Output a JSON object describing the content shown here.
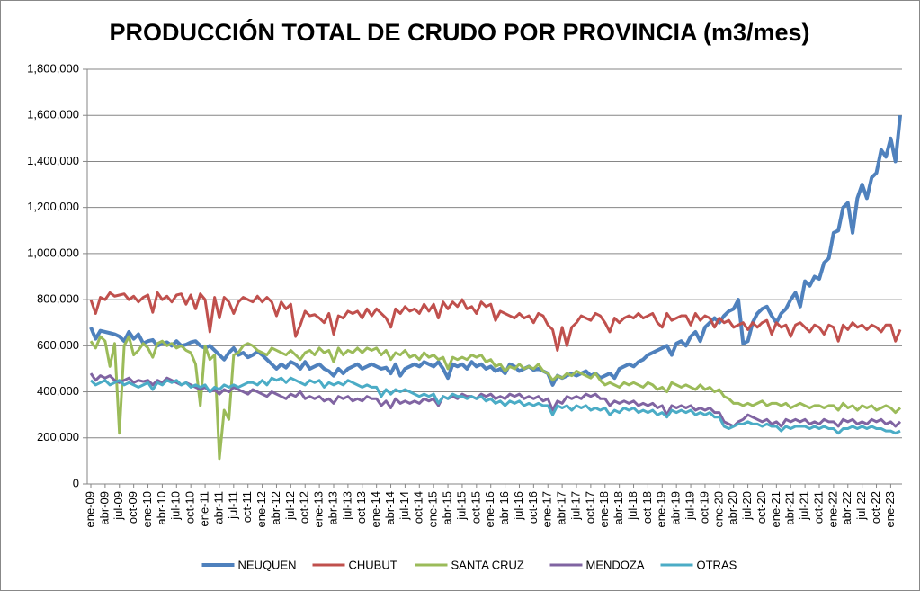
{
  "chart_data": {
    "type": "line",
    "title": "PRODUCCIÓN TOTAL DE CRUDO POR PROVINCIA (m3/mes)",
    "categories": [
      "ene-09",
      null,
      null,
      "abr-09",
      null,
      null,
      "jul-09",
      null,
      null,
      "oct-09",
      null,
      null,
      "ene-10",
      null,
      null,
      "abr-10",
      null,
      null,
      "jul-10",
      null,
      null,
      "oct-10",
      null,
      null,
      "ene-11",
      null,
      null,
      "abr-11",
      null,
      null,
      "jul-11",
      null,
      null,
      "oct-11",
      null,
      null,
      "ene-12",
      null,
      null,
      "abr-12",
      null,
      null,
      "jul-12",
      null,
      null,
      "oct-12",
      null,
      null,
      "ene-13",
      null,
      null,
      "abr-13",
      null,
      null,
      "jul-13",
      null,
      null,
      "oct-13",
      null,
      null,
      "ene-14",
      null,
      null,
      "abr-14",
      null,
      null,
      "jul-14",
      null,
      null,
      "oct-14",
      null,
      null,
      "ene-15",
      null,
      null,
      "abr-15",
      null,
      null,
      "jul-15",
      null,
      null,
      "oct-15",
      null,
      null,
      "ene-16",
      null,
      null,
      "abr-16",
      null,
      null,
      "jul-16",
      null,
      null,
      "oct-16",
      null,
      null,
      "ene-17",
      null,
      null,
      "abr-17",
      null,
      null,
      "jul-17",
      null,
      null,
      "oct-17",
      null,
      null,
      "ene-18",
      null,
      null,
      "abr-18",
      null,
      null,
      "jul-18",
      null,
      null,
      "oct-18",
      null,
      null,
      "ene-19",
      null,
      null,
      "abr-19",
      null,
      null,
      "jul-19",
      null,
      null,
      "oct-19",
      null,
      null,
      "ene-20",
      null,
      null,
      "abr-20",
      null,
      null,
      "jul-20",
      null,
      null,
      "oct-20",
      null,
      null,
      "ene-21",
      null,
      null,
      "abr-21",
      null,
      null,
      "jul-21",
      null,
      null,
      "oct-21",
      null,
      null,
      "ene-22",
      null,
      null,
      "abr-22",
      null,
      null,
      "jul-22",
      null,
      null,
      "oct-22",
      null,
      null,
      "ene-23",
      null,
      null
    ],
    "series": [
      {
        "name": "NEUQUEN",
        "color": "#4f81bd",
        "values": [
          680000,
          630000,
          665000,
          660000,
          655000,
          650000,
          640000,
          620000,
          660000,
          630000,
          650000,
          610000,
          620000,
          625000,
          600000,
          610000,
          615000,
          600000,
          620000,
          600000,
          605000,
          615000,
          620000,
          600000,
          590000,
          600000,
          580000,
          560000,
          540000,
          570000,
          590000,
          560000,
          570000,
          550000,
          560000,
          575000,
          560000,
          540000,
          520000,
          500000,
          520000,
          505000,
          530000,
          520000,
          500000,
          530000,
          500000,
          510000,
          520000,
          500000,
          490000,
          470000,
          500000,
          480000,
          500000,
          510000,
          520000,
          500000,
          510000,
          520000,
          510000,
          500000,
          505000,
          480000,
          520000,
          470000,
          500000,
          510000,
          520000,
          510000,
          530000,
          520000,
          510000,
          530000,
          500000,
          460000,
          520000,
          510000,
          520000,
          500000,
          530000,
          510000,
          520000,
          500000,
          510000,
          490000,
          500000,
          480000,
          520000,
          510000,
          490000,
          500000,
          510000,
          495000,
          500000,
          490000,
          480000,
          430000,
          470000,
          460000,
          470000,
          480000,
          470000,
          480000,
          490000,
          470000,
          480000,
          460000,
          470000,
          480000,
          460000,
          500000,
          510000,
          520000,
          510000,
          530000,
          540000,
          560000,
          570000,
          580000,
          590000,
          600000,
          560000,
          610000,
          620000,
          600000,
          640000,
          660000,
          620000,
          680000,
          700000,
          720000,
          700000,
          730000,
          750000,
          760000,
          800000,
          610000,
          620000,
          700000,
          740000,
          760000,
          770000,
          730000,
          700000,
          740000,
          760000,
          800000,
          830000,
          770000,
          880000,
          860000,
          900000,
          890000,
          960000,
          980000,
          1090000,
          1100000,
          1200000,
          1220000,
          1090000,
          1240000,
          1300000,
          1240000,
          1330000,
          1350000,
          1450000,
          1420000,
          1500000,
          1400000,
          1600000
        ]
      },
      {
        "name": "CHUBUT",
        "color": "#c0504d",
        "values": [
          800000,
          740000,
          810000,
          800000,
          830000,
          815000,
          820000,
          825000,
          800000,
          815000,
          790000,
          810000,
          820000,
          745000,
          830000,
          800000,
          815000,
          790000,
          820000,
          825000,
          780000,
          820000,
          760000,
          825000,
          800000,
          660000,
          810000,
          720000,
          810000,
          790000,
          740000,
          790000,
          810000,
          800000,
          790000,
          815000,
          790000,
          810000,
          790000,
          730000,
          790000,
          760000,
          780000,
          640000,
          690000,
          750000,
          730000,
          735000,
          720000,
          700000,
          740000,
          650000,
          730000,
          720000,
          750000,
          740000,
          750000,
          720000,
          760000,
          730000,
          760000,
          740000,
          720000,
          680000,
          760000,
          740000,
          770000,
          750000,
          760000,
          740000,
          780000,
          750000,
          780000,
          720000,
          790000,
          760000,
          790000,
          770000,
          800000,
          760000,
          770000,
          740000,
          790000,
          770000,
          780000,
          710000,
          750000,
          740000,
          730000,
          720000,
          740000,
          720000,
          730000,
          700000,
          740000,
          730000,
          690000,
          670000,
          580000,
          680000,
          600000,
          680000,
          700000,
          730000,
          720000,
          710000,
          740000,
          730000,
          700000,
          660000,
          720000,
          700000,
          720000,
          730000,
          720000,
          740000,
          720000,
          730000,
          740000,
          700000,
          680000,
          740000,
          710000,
          720000,
          730000,
          730000,
          690000,
          740000,
          710000,
          730000,
          720000,
          680000,
          720000,
          700000,
          710000,
          680000,
          690000,
          700000,
          670000,
          700000,
          680000,
          700000,
          710000,
          650000,
          700000,
          680000,
          690000,
          640000,
          690000,
          700000,
          680000,
          660000,
          690000,
          680000,
          650000,
          690000,
          680000,
          620000,
          690000,
          670000,
          700000,
          680000,
          690000,
          670000,
          690000,
          680000,
          660000,
          690000,
          690000,
          620000,
          670000
        ]
      },
      {
        "name": "SANTA CRUZ",
        "color": "#9bbb59",
        "values": [
          620000,
          590000,
          640000,
          620000,
          510000,
          610000,
          220000,
          600000,
          640000,
          560000,
          580000,
          610000,
          590000,
          550000,
          610000,
          620000,
          600000,
          610000,
          590000,
          600000,
          580000,
          570000,
          520000,
          340000,
          600000,
          540000,
          560000,
          110000,
          320000,
          280000,
          560000,
          570000,
          600000,
          610000,
          600000,
          580000,
          570000,
          560000,
          590000,
          580000,
          570000,
          560000,
          580000,
          560000,
          540000,
          570000,
          580000,
          560000,
          590000,
          570000,
          580000,
          530000,
          590000,
          560000,
          580000,
          570000,
          590000,
          570000,
          590000,
          580000,
          590000,
          560000,
          580000,
          540000,
          570000,
          560000,
          580000,
          550000,
          560000,
          540000,
          570000,
          550000,
          560000,
          540000,
          550000,
          500000,
          550000,
          540000,
          550000,
          540000,
          560000,
          550000,
          560000,
          530000,
          540000,
          510000,
          520000,
          490000,
          510000,
          500000,
          520000,
          500000,
          510000,
          500000,
          520000,
          490000,
          480000,
          450000,
          470000,
          460000,
          480000,
          470000,
          490000,
          480000,
          470000,
          460000,
          480000,
          450000,
          430000,
          440000,
          430000,
          420000,
          440000,
          430000,
          440000,
          430000,
          420000,
          440000,
          430000,
          410000,
          420000,
          400000,
          440000,
          430000,
          420000,
          430000,
          420000,
          410000,
          430000,
          410000,
          420000,
          400000,
          410000,
          380000,
          370000,
          350000,
          350000,
          340000,
          350000,
          340000,
          350000,
          360000,
          340000,
          350000,
          350000,
          340000,
          350000,
          330000,
          340000,
          350000,
          340000,
          330000,
          340000,
          340000,
          330000,
          340000,
          340000,
          320000,
          350000,
          330000,
          340000,
          320000,
          340000,
          330000,
          340000,
          320000,
          330000,
          340000,
          330000,
          310000,
          330000
        ]
      },
      {
        "name": "MENDOZA",
        "color": "#8064a2",
        "values": [
          480000,
          450000,
          470000,
          460000,
          470000,
          450000,
          440000,
          450000,
          460000,
          440000,
          450000,
          445000,
          450000,
          430000,
          450000,
          440000,
          460000,
          450000,
          440000,
          430000,
          440000,
          430000,
          420000,
          410000,
          420000,
          400000,
          410000,
          390000,
          410000,
          400000,
          420000,
          410000,
          400000,
          390000,
          410000,
          400000,
          390000,
          380000,
          400000,
          390000,
          380000,
          370000,
          390000,
          380000,
          400000,
          370000,
          380000,
          370000,
          380000,
          360000,
          370000,
          350000,
          380000,
          370000,
          380000,
          360000,
          370000,
          360000,
          380000,
          370000,
          370000,
          340000,
          360000,
          330000,
          370000,
          350000,
          360000,
          350000,
          360000,
          350000,
          370000,
          360000,
          370000,
          340000,
          380000,
          370000,
          380000,
          370000,
          390000,
          380000,
          380000,
          370000,
          390000,
          380000,
          390000,
          370000,
          380000,
          370000,
          390000,
          380000,
          390000,
          370000,
          380000,
          370000,
          380000,
          360000,
          370000,
          320000,
          360000,
          350000,
          380000,
          370000,
          380000,
          370000,
          390000,
          380000,
          390000,
          370000,
          370000,
          340000,
          360000,
          350000,
          360000,
          350000,
          360000,
          340000,
          350000,
          340000,
          350000,
          330000,
          340000,
          300000,
          340000,
          330000,
          340000,
          330000,
          340000,
          320000,
          330000,
          320000,
          330000,
          310000,
          310000,
          270000,
          260000,
          250000,
          270000,
          280000,
          300000,
          290000,
          280000,
          270000,
          280000,
          260000,
          270000,
          250000,
          280000,
          270000,
          280000,
          270000,
          280000,
          260000,
          270000,
          260000,
          280000,
          270000,
          270000,
          250000,
          280000,
          270000,
          280000,
          260000,
          270000,
          260000,
          280000,
          270000,
          280000,
          260000,
          270000,
          250000,
          270000
        ]
      },
      {
        "name": "OTRAS",
        "color": "#4bacc6",
        "values": [
          450000,
          430000,
          440000,
          450000,
          430000,
          440000,
          450000,
          430000,
          440000,
          430000,
          420000,
          430000,
          440000,
          410000,
          440000,
          430000,
          450000,
          440000,
          450000,
          430000,
          440000,
          420000,
          430000,
          420000,
          430000,
          400000,
          420000,
          410000,
          430000,
          420000,
          430000,
          420000,
          430000,
          440000,
          440000,
          430000,
          450000,
          430000,
          460000,
          450000,
          460000,
          440000,
          460000,
          450000,
          440000,
          430000,
          450000,
          440000,
          450000,
          420000,
          440000,
          430000,
          440000,
          430000,
          450000,
          440000,
          430000,
          420000,
          430000,
          420000,
          420000,
          380000,
          410000,
          390000,
          410000,
          400000,
          410000,
          400000,
          390000,
          380000,
          390000,
          380000,
          390000,
          350000,
          380000,
          370000,
          390000,
          380000,
          380000,
          370000,
          380000,
          370000,
          380000,
          360000,
          370000,
          350000,
          360000,
          340000,
          360000,
          350000,
          360000,
          340000,
          350000,
          340000,
          350000,
          340000,
          340000,
          300000,
          340000,
          330000,
          340000,
          320000,
          340000,
          330000,
          340000,
          320000,
          330000,
          320000,
          330000,
          300000,
          320000,
          310000,
          330000,
          320000,
          330000,
          310000,
          320000,
          310000,
          320000,
          300000,
          310000,
          290000,
          320000,
          310000,
          320000,
          310000,
          320000,
          300000,
          310000,
          300000,
          310000,
          290000,
          290000,
          250000,
          240000,
          250000,
          260000,
          260000,
          270000,
          260000,
          260000,
          250000,
          260000,
          250000,
          250000,
          230000,
          250000,
          240000,
          250000,
          250000,
          250000,
          240000,
          250000,
          240000,
          250000,
          240000,
          240000,
          220000,
          240000,
          240000,
          250000,
          240000,
          250000,
          240000,
          250000,
          240000,
          240000,
          230000,
          230000,
          220000,
          230000
        ]
      }
    ],
    "ylim": [
      0,
      1800000
    ],
    "yticks": [
      0,
      {
        "value": 200000,
        "label": "200,000"
      },
      {
        "value": 400000,
        "label": "400,000"
      },
      {
        "value": 600000,
        "label": "600,000"
      },
      {
        "value": 800000,
        "label": "800,000"
      },
      {
        "value": 1000000,
        "label": "1,000,000"
      },
      {
        "value": 1200000,
        "label": "1,200,000"
      },
      {
        "value": 1400000,
        "label": "1,400,000"
      },
      {
        "value": 1600000,
        "label": "1,600,000"
      },
      {
        "value": 1800000,
        "label": "1,800,000"
      }
    ],
    "grid": true,
    "legend": "bottom"
  }
}
